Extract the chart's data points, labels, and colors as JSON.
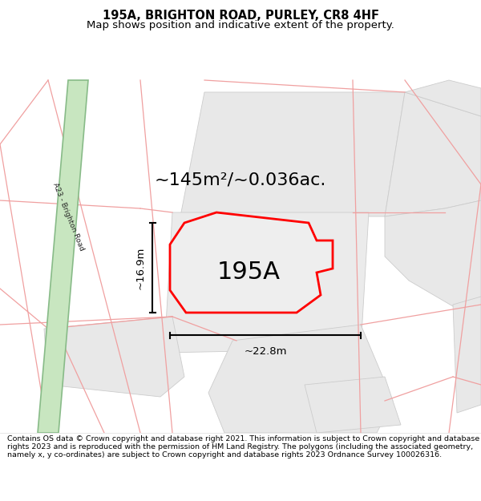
{
  "title": "195A, BRIGHTON ROAD, PURLEY, CR8 4HF",
  "subtitle": "Map shows position and indicative extent of the property.",
  "footer": "Contains OS data © Crown copyright and database right 2021. This information is subject to Crown copyright and database rights 2023 and is reproduced with the permission of HM Land Registry. The polygons (including the associated geometry, namely x, y co-ordinates) are subject to Crown copyright and database rights 2023 Ordnance Survey 100026316.",
  "area_label": "~145m²/~0.036ac.",
  "property_label": "195A",
  "dim_width": "~22.8m",
  "dim_height": "~16.9m",
  "map_bg": "#ffffff",
  "road_green_fill": "#c8e6c0",
  "road_green_edge": "#88bb88",
  "block_fill": "#e8e8e8",
  "block_edge": "#cccccc",
  "pink_line": "#f0a0a0",
  "red_outline": "#ff0000",
  "prop_fill": "#eeeeee",
  "road_label": "A23 - Brighton Road",
  "title_fontsize": 10.5,
  "subtitle_fontsize": 9.5
}
